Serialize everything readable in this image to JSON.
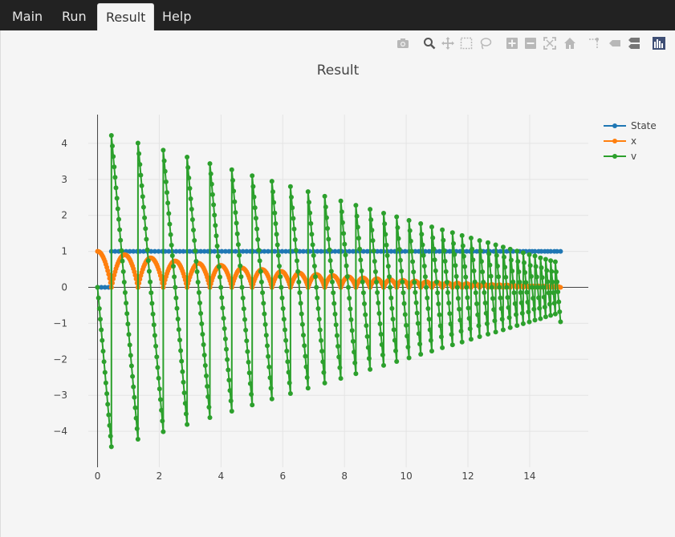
{
  "tabs": [
    {
      "label": "Main"
    },
    {
      "label": "Run"
    },
    {
      "label": "Result",
      "active": true
    },
    {
      "label": "Help"
    }
  ],
  "modebar": {
    "icons": [
      "camera-icon",
      "zoom-icon",
      "pan-icon",
      "box-select-icon",
      "lasso-select-icon",
      "zoom-in-icon",
      "zoom-out-icon",
      "autoscale-icon",
      "reset-axes-icon",
      "spike-lines-icon",
      "hover-closest-icon",
      "hover-compare-icon",
      "plotly-logo-icon"
    ]
  },
  "chart_data": {
    "type": "line",
    "title": "Result",
    "xlabel": "",
    "ylabel": "",
    "xlim": [
      -0.3,
      15.9
    ],
    "ylim": [
      -5.0,
      4.8
    ],
    "xticks": [
      0,
      2,
      4,
      6,
      8,
      10,
      12,
      14
    ],
    "xtick_labels": [
      "0",
      "2",
      "4",
      "6",
      "8",
      "10",
      "12",
      "14"
    ],
    "yticks": [
      -4,
      -3,
      -2,
      -1,
      0,
      1,
      2,
      3,
      4
    ],
    "ytick_labels": [
      "−4",
      "−3",
      "−2",
      "−1",
      "0",
      "1",
      "2",
      "3",
      "4"
    ],
    "grid": true,
    "legend_position": "top-right",
    "colors": {
      "State": "#1f77b4",
      "x": "#ff7f0e",
      "v": "#2ca02c"
    },
    "series": [
      {
        "name": "State",
        "description": "0 until first impact near t=0.45, then constant 1 through t=15"
      },
      {
        "name": "x",
        "description": "bouncing ball height; starts at 1, successive bounces decaying toward 0"
      },
      {
        "name": "v",
        "description": "velocity; sawtooth decreasing linearly between bounces, jumping up at each impact, amplitudes decaying"
      }
    ],
    "events": [
      {
        "t": 0.45,
        "v_before": -4.43,
        "v_after": 4.22
      },
      {
        "t": 1.31,
        "v_before": -4.22,
        "v_after": 4.01
      },
      {
        "t": 2.13,
        "v_before": -4.01,
        "v_after": 3.81
      },
      {
        "t": 2.9,
        "v_before": -3.81,
        "v_after": 3.62
      },
      {
        "t": 3.64,
        "v_before": -3.62,
        "v_after": 3.44
      },
      {
        "t": 4.35,
        "v_before": -3.44,
        "v_after": 3.27
      },
      {
        "t": 5.01,
        "v_before": -3.27,
        "v_after": 3.1
      },
      {
        "t": 5.65,
        "v_before": -3.1,
        "v_after": 2.95
      },
      {
        "t": 6.25,
        "v_before": -2.95,
        "v_after": 2.8
      },
      {
        "t": 6.82,
        "v_before": -2.8,
        "v_after": 2.66
      },
      {
        "t": 7.36,
        "v_before": -2.66,
        "v_after": 2.53
      },
      {
        "t": 7.88,
        "v_before": -2.53,
        "v_after": 2.4
      },
      {
        "t": 8.37,
        "v_before": -2.4,
        "v_after": 2.28
      },
      {
        "t": 8.83,
        "v_before": -2.28,
        "v_after": 2.17
      },
      {
        "t": 9.27,
        "v_before": -2.17,
        "v_after": 2.06
      },
      {
        "t": 9.69,
        "v_before": -2.06,
        "v_after": 1.96
      },
      {
        "t": 10.09,
        "v_before": -1.96,
        "v_after": 1.86
      },
      {
        "t": 10.47,
        "v_before": -1.86,
        "v_after": 1.77
      },
      {
        "t": 10.83,
        "v_before": -1.77,
        "v_after": 1.68
      },
      {
        "t": 11.17,
        "v_before": -1.68,
        "v_after": 1.6
      },
      {
        "t": 11.5,
        "v_before": -1.6,
        "v_after": 1.52
      },
      {
        "t": 11.81,
        "v_before": -1.52,
        "v_after": 1.44
      },
      {
        "t": 12.1,
        "v_before": -1.44,
        "v_after": 1.37
      },
      {
        "t": 12.38,
        "v_before": -1.37,
        "v_after": 1.3
      },
      {
        "t": 12.65,
        "v_before": -1.3,
        "v_after": 1.24
      },
      {
        "t": 12.9,
        "v_before": -1.24,
        "v_after": 1.18
      },
      {
        "t": 13.14,
        "v_before": -1.18,
        "v_after": 1.12
      },
      {
        "t": 13.37,
        "v_before": -1.12,
        "v_after": 1.06
      },
      {
        "t": 13.59,
        "v_before": -1.06,
        "v_after": 1.01
      },
      {
        "t": 13.79,
        "v_before": -1.01,
        "v_after": 0.96
      },
      {
        "t": 13.99,
        "v_before": -0.96,
        "v_after": 0.91
      },
      {
        "t": 14.17,
        "v_before": -0.91,
        "v_after": 0.87
      },
      {
        "t": 14.35,
        "v_before": -0.87,
        "v_after": 0.82
      },
      {
        "t": 14.52,
        "v_before": -0.82,
        "v_after": 0.78
      },
      {
        "t": 14.68,
        "v_before": -0.78,
        "v_after": 0.74
      },
      {
        "t": 14.83,
        "v_before": -0.74,
        "v_after": 0.71
      }
    ],
    "t_end": 15.0,
    "x0": 1.0,
    "v0": 0.0
  }
}
